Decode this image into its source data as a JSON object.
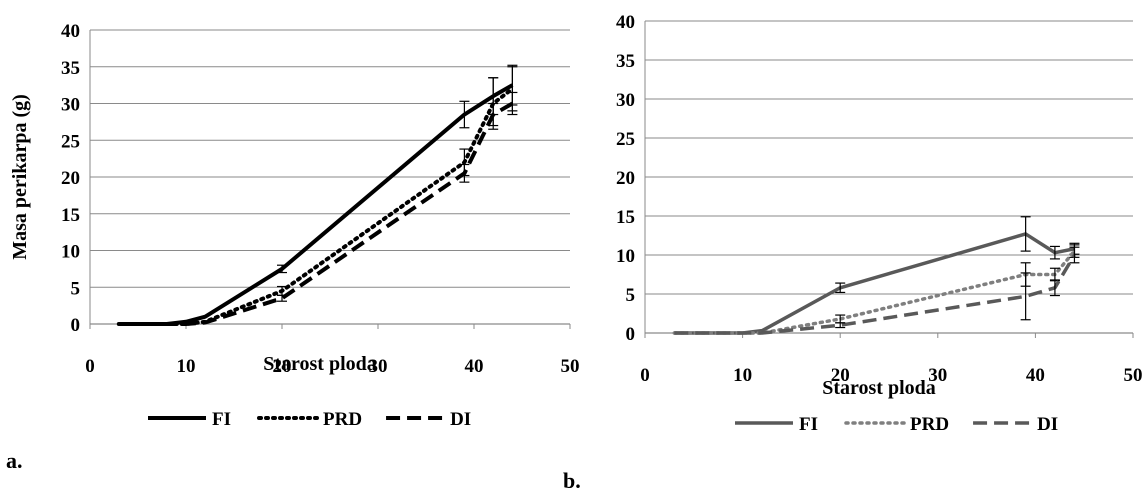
{
  "chart_data": [
    {
      "panel_label": "a.",
      "type": "line",
      "xlabel": "Starost ploda",
      "ylabel": "Masa perikarpa  (g)",
      "xlim": [
        0,
        50
      ],
      "ylim": [
        0,
        40
      ],
      "xticks": [
        "0",
        "10",
        "20",
        "30",
        "40",
        "50"
      ],
      "yticks": [
        "0",
        "5",
        "10",
        "15",
        "20",
        "25",
        "30",
        "35",
        "40"
      ],
      "grid": "horizontal",
      "legend_position": "bottom",
      "colors": {
        "FI": "#000000",
        "PRD": "#000000",
        "DI": "#000000"
      },
      "series": [
        {
          "name": "FI",
          "style": "solid",
          "x": [
            3,
            8,
            10,
            12,
            20,
            39,
            42,
            44
          ],
          "y": [
            0,
            0,
            0.3,
            1.0,
            7.5,
            28.5,
            31.0,
            32.5
          ],
          "err": [
            0,
            0,
            0,
            0,
            0.5,
            1.8,
            2.5,
            2.7
          ]
        },
        {
          "name": "PRD",
          "style": "dotted",
          "x": [
            3,
            8,
            10,
            12,
            20,
            39,
            42,
            44
          ],
          "y": [
            0,
            0,
            0,
            0.3,
            4.5,
            22.0,
            30.0,
            32.0
          ],
          "err": [
            0,
            0,
            0,
            0,
            0.6,
            1.8,
            3.5,
            3.0
          ]
        },
        {
          "name": "DI",
          "style": "dashed",
          "x": [
            3,
            8,
            10,
            12,
            20,
            39,
            42,
            44
          ],
          "y": [
            0,
            0,
            0,
            0.2,
            3.5,
            20.5,
            28.5,
            30.0
          ],
          "err": [
            0,
            0,
            0,
            0,
            0.4,
            1.2,
            1.5,
            1.5
          ]
        }
      ]
    },
    {
      "panel_label": "b.",
      "type": "line",
      "xlabel": "Starost ploda",
      "ylabel": "",
      "xlim": [
        0,
        50
      ],
      "ylim": [
        0,
        40
      ],
      "xticks": [
        "0",
        "10",
        "20",
        "30",
        "40",
        "50"
      ],
      "yticks": [
        "0",
        "5",
        "10",
        "15",
        "20",
        "25",
        "30",
        "35",
        "40"
      ],
      "grid": "horizontal",
      "legend_position": "bottom",
      "colors": {
        "FI": "#595959",
        "PRD": "#7f7f7f",
        "DI": "#595959"
      },
      "series": [
        {
          "name": "FI",
          "style": "solid",
          "x": [
            3,
            10,
            12,
            20,
            39,
            42,
            44
          ],
          "y": [
            0,
            0,
            0.3,
            5.8,
            12.7,
            10.3,
            10.8
          ],
          "err": [
            0,
            0,
            0,
            0.6,
            2.2,
            0.8,
            0.7
          ]
        },
        {
          "name": "PRD",
          "style": "dotted",
          "x": [
            3,
            10,
            12,
            20,
            39,
            42,
            44
          ],
          "y": [
            0,
            0,
            0,
            1.8,
            7.5,
            7.5,
            10.5
          ],
          "err": [
            0,
            0,
            0,
            0.5,
            1.5,
            0.8,
            0.8
          ]
        },
        {
          "name": "DI",
          "style": "dashed",
          "x": [
            3,
            10,
            12,
            20,
            39,
            42,
            44
          ],
          "y": [
            0,
            0,
            0,
            1.0,
            4.7,
            5.8,
            10.0
          ],
          "err": [
            0,
            0,
            0,
            0.3,
            3.0,
            1.0,
            1.0
          ]
        }
      ]
    }
  ]
}
